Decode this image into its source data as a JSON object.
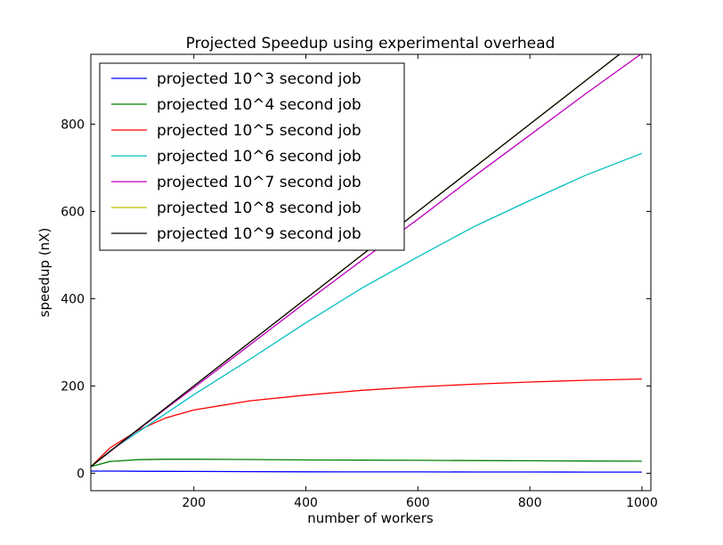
{
  "chart_data": {
    "type": "line",
    "title": "Projected Speedup using experimental overhead",
    "xlabel": "number of workers",
    "ylabel": "speedup (nX)",
    "xlim": [
      16,
      1016
    ],
    "ylim": [
      -40,
      960
    ],
    "xticks": [
      200,
      400,
      600,
      800,
      1000
    ],
    "yticks": [
      0,
      200,
      400,
      600,
      800
    ],
    "grid": false,
    "legend_position": "top-left",
    "x": [
      16,
      50,
      100,
      150,
      200,
      300,
      400,
      500,
      600,
      700,
      800,
      900,
      1000
    ],
    "series": [
      {
        "name": "projected 10^3 second job",
        "color": "#0000ff",
        "values": [
          5,
          5,
          4.5,
          4.2,
          4,
          3.6,
          3.3,
          3.1,
          3,
          2.9,
          2.8,
          2.7,
          2.6
        ]
      },
      {
        "name": "projected 10^4 second job",
        "color": "#008000",
        "values": [
          15,
          27,
          31,
          32,
          32,
          31.5,
          30.5,
          30,
          29.5,
          29,
          28.5,
          28,
          27.5
        ]
      },
      {
        "name": "projected 10^5 second job",
        "color": "#ff0000",
        "values": [
          15,
          58,
          98,
          127,
          145,
          166,
          179,
          190,
          198,
          204,
          209,
          213,
          216
        ]
      },
      {
        "name": "projected 10^6 second job",
        "color": "#00bfbf",
        "values": [
          15,
          51,
          94,
          137,
          180,
          261,
          345,
          424,
          496,
          565,
          625,
          683,
          733
        ]
      },
      {
        "name": "projected 10^7 second job",
        "color": "#bf00bf",
        "values": [
          15,
          49,
          99,
          148,
          196,
          294,
          392,
          488,
          582,
          680,
          775,
          870,
          962
        ]
      },
      {
        "name": "projected 10^8 second job",
        "color": "#bfbf00",
        "values": [
          15,
          50,
          100,
          150,
          200,
          300,
          400,
          500,
          600,
          700,
          800,
          900,
          1000
        ]
      },
      {
        "name": "projected 10^9 second job",
        "color": "#000000",
        "values": [
          15,
          50,
          100,
          150,
          200,
          300,
          400,
          500,
          600,
          700,
          800,
          900,
          1000
        ]
      }
    ]
  }
}
